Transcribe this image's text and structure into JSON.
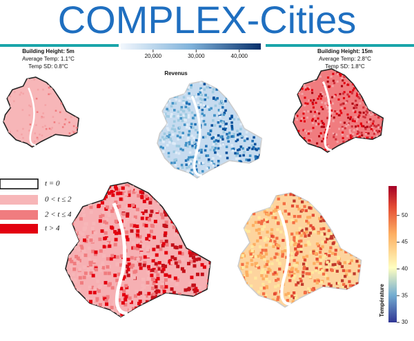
{
  "title": "COMPLEX-Cities",
  "revenue_colorbar": {
    "label": "Revenus",
    "lim": [
      12500,
      45000
    ],
    "ticks": [
      {
        "value": 20000,
        "label": "20,000"
      },
      {
        "value": 30000,
        "label": "30,000"
      },
      {
        "value": 40000,
        "label": "40,000"
      }
    ]
  },
  "panels": [
    {
      "title": "Building Height: 5m",
      "average": "Average Temp: 1.1°C",
      "sd": "Temp SD: 0.8°C"
    },
    {
      "title": "Building Height: 15m",
      "average": "Average Temp: 2.8°C",
      "sd": "Temp SD: 1.8°C"
    }
  ],
  "legend": [
    {
      "label": "t = 0",
      "color": "#ffffff"
    },
    {
      "label": "0 < t ≤ 2",
      "color": "#f7b6b8"
    },
    {
      "label": "2 < t ≤ 4",
      "color": "#f07c7f"
    },
    {
      "label": "t > 4",
      "color": "#e3000f"
    }
  ],
  "temperature_colorbar": {
    "label": "Température",
    "lim": [
      30,
      55.5
    ],
    "ticks": [
      30,
      35,
      40,
      45,
      50
    ]
  }
}
